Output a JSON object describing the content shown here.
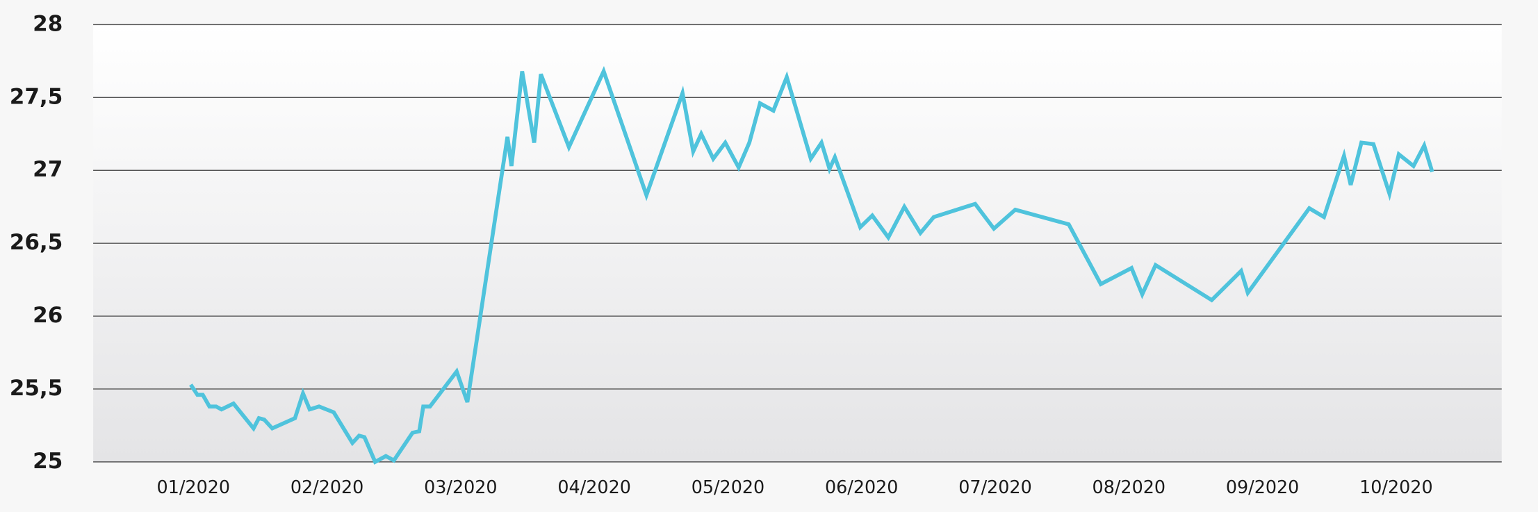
{
  "chart_data": {
    "type": "line",
    "x": [
      -0.02,
      0.03,
      0.07,
      0.12,
      0.17,
      0.21,
      0.3,
      0.45,
      0.49,
      0.53,
      0.59,
      0.76,
      0.82,
      0.87,
      0.94,
      1.05,
      1.19,
      1.24,
      1.28,
      1.36,
      1.44,
      1.5,
      1.64,
      1.69,
      1.72,
      1.77,
      1.97,
      2.05,
      2.35,
      2.38,
      2.46,
      2.55,
      2.6,
      2.81,
      3.07,
      3.39,
      3.66,
      3.74,
      3.8,
      3.89,
      3.98,
      4.08,
      4.16,
      4.24,
      4.34,
      4.44,
      4.62,
      4.7,
      4.76,
      4.8,
      4.99,
      5.08,
      5.2,
      5.32,
      5.44,
      5.54,
      5.85,
      5.99,
      6.15,
      6.55,
      6.79,
      7.02,
      7.1,
      7.2,
      7.62,
      7.84,
      7.89,
      8.35,
      8.46,
      8.61,
      8.66,
      8.74,
      8.83,
      8.95,
      9.02,
      9.13,
      9.21,
      9.27
    ],
    "values": [
      25.53,
      25.46,
      25.46,
      25.38,
      25.38,
      25.36,
      25.4,
      25.23,
      25.3,
      25.29,
      25.23,
      25.3,
      25.47,
      25.36,
      25.38,
      25.34,
      25.13,
      25.18,
      25.17,
      25.0,
      25.04,
      25.01,
      25.2,
      25.21,
      25.38,
      25.38,
      25.62,
      25.41,
      27.23,
      27.03,
      27.68,
      27.19,
      27.66,
      27.16,
      27.68,
      26.83,
      27.53,
      27.13,
      27.25,
      27.08,
      27.19,
      27.02,
      27.19,
      27.46,
      27.41,
      27.64,
      27.08,
      27.19,
      27.01,
      27.09,
      26.61,
      26.69,
      26.54,
      26.75,
      26.57,
      26.68,
      26.77,
      26.6,
      26.73,
      26.63,
      26.22,
      26.33,
      26.15,
      26.35,
      26.11,
      26.31,
      26.16,
      26.74,
      26.68,
      27.1,
      26.9,
      27.19,
      27.18,
      26.84,
      27.11,
      27.03,
      27.17,
      26.99
    ],
    "color": "#4fc3dc",
    "xlim": [
      -0.75,
      9.79
    ],
    "xticks": [
      {
        "value": 0,
        "label": "01/2020"
      },
      {
        "value": 1,
        "label": "02/2020"
      },
      {
        "value": 2,
        "label": "03/2020"
      },
      {
        "value": 3,
        "label": "04/2020"
      },
      {
        "value": 4,
        "label": "05/2020"
      },
      {
        "value": 5,
        "label": "06/2020"
      },
      {
        "value": 6,
        "label": "07/2020"
      },
      {
        "value": 7,
        "label": "08/2020"
      },
      {
        "value": 8,
        "label": "09/2020"
      },
      {
        "value": 9,
        "label": "10/2020"
      }
    ],
    "ylim": [
      25,
      28
    ],
    "yticks": [
      25,
      {
        "value": 25.5,
        "label": "25,5"
      },
      26,
      {
        "value": 26.5,
        "label": "26,5"
      },
      27,
      {
        "value": 27.5,
        "label": "27,5"
      },
      28
    ],
    "grid": true
  }
}
